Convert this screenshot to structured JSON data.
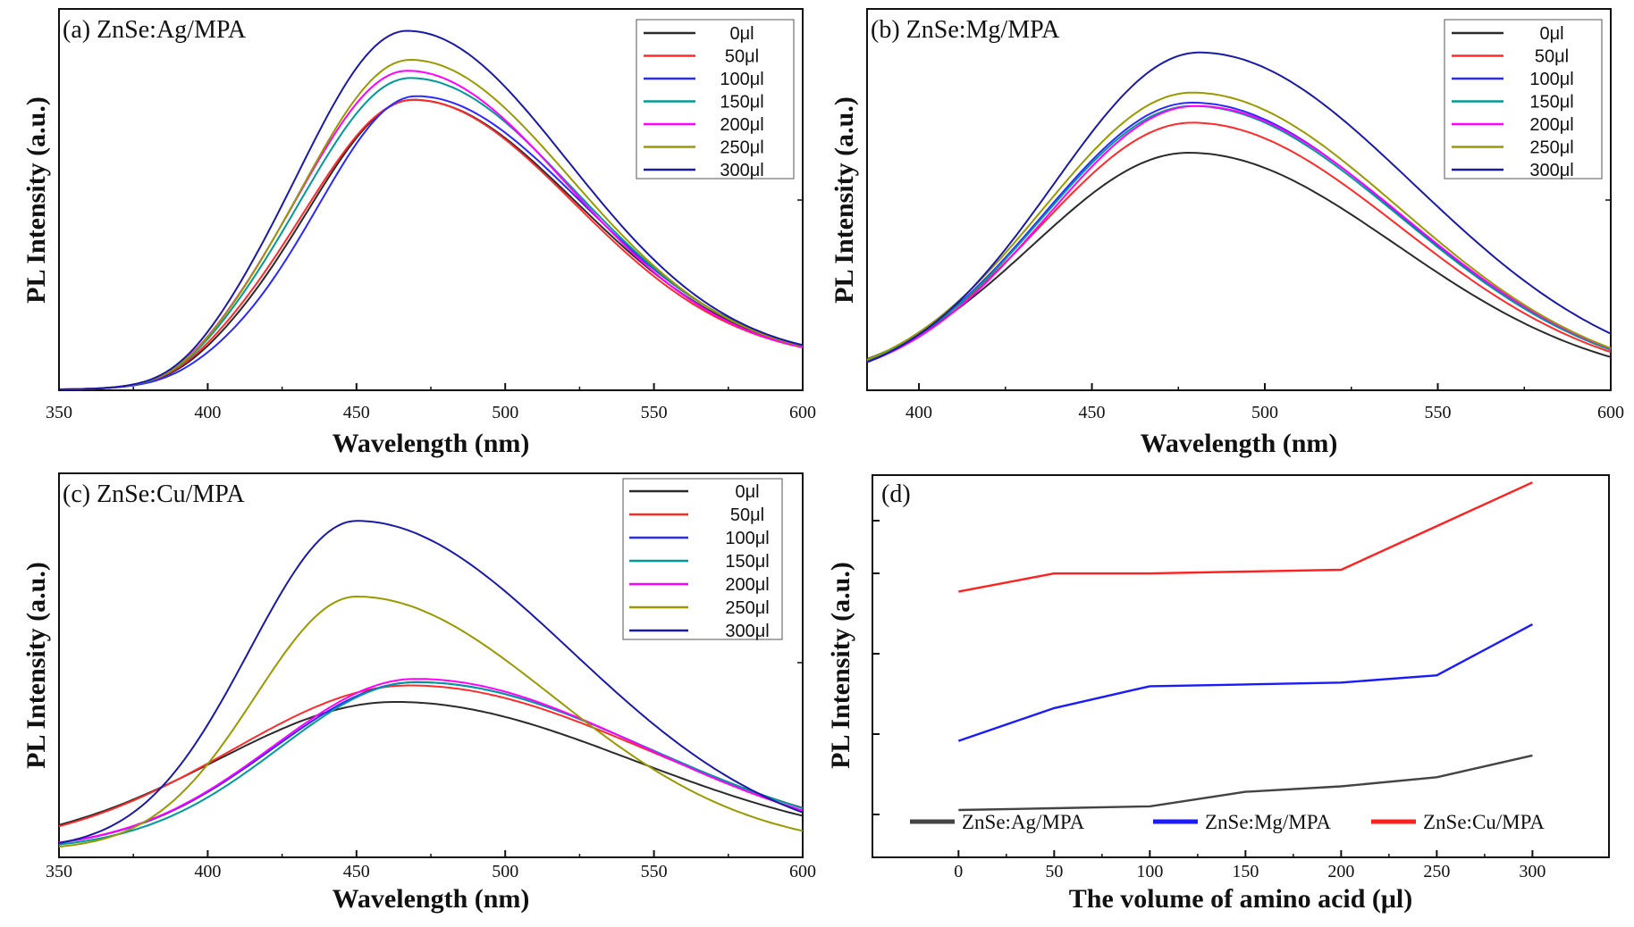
{
  "chart_data": [
    {
      "type": "line",
      "panel": "a",
      "title": "(a) ZnSe:Ag/MPA",
      "xlabel": "Wavelength (nm)",
      "ylabel": "PL Intensity (a.u.)",
      "xlim": [
        350,
        600
      ],
      "ylim": [
        0,
        1.05
      ],
      "xticks": [
        "350",
        "400",
        "450",
        "500",
        "550",
        "600"
      ],
      "legend_position": "top-right",
      "series": [
        {
          "name": "0μl",
          "color": "#2b2b2b",
          "peak": 0.8,
          "center": 469,
          "sigma_left": 34,
          "sigma_right": 55,
          "baseline": 0.08
        },
        {
          "name": "50μl",
          "color": "#ff2a2a",
          "peak": 0.8,
          "center": 469,
          "sigma_left": 35,
          "sigma_right": 54,
          "baseline": 0.08
        },
        {
          "name": "100μl",
          "color": "#2a2aff",
          "peak": 0.81,
          "center": 470,
          "sigma_left": 32,
          "sigma_right": 55,
          "baseline": 0.08
        },
        {
          "name": "150μl",
          "color": "#009999",
          "peak": 0.86,
          "center": 468,
          "sigma_left": 35,
          "sigma_right": 55,
          "baseline": 0.08
        },
        {
          "name": "200μl",
          "color": "#ff00ff",
          "peak": 0.88,
          "center": 467,
          "sigma_left": 35,
          "sigma_right": 54,
          "baseline": 0.08
        },
        {
          "name": "250μl",
          "color": "#999900",
          "peak": 0.91,
          "center": 468,
          "sigma_left": 35,
          "sigma_right": 54,
          "baseline": 0.08
        },
        {
          "name": "300μl",
          "color": "#1a1aa6",
          "peak": 0.99,
          "center": 467,
          "sigma_left": 35,
          "sigma_right": 54,
          "baseline": 0.08
        }
      ]
    },
    {
      "type": "line",
      "panel": "b",
      "title": "(b) ZnSe:Mg/MPA",
      "xlabel": "Wavelength (nm)",
      "ylabel": "PL Intensity (a.u.)",
      "xlim": [
        385,
        600
      ],
      "ylim": [
        0,
        1.05
      ],
      "xticks": [
        "400",
        "450",
        "500",
        "550",
        "600"
      ],
      "legend_position": "top-right",
      "series": [
        {
          "name": "0μl",
          "color": "#2b2b2b",
          "peak": 0.7,
          "center": 478,
          "sigma_left": 45,
          "sigma_right": 60,
          "baseline": 0.0
        },
        {
          "name": "50μl",
          "color": "#ff2a2a",
          "peak": 0.79,
          "center": 479,
          "sigma_left": 44,
          "sigma_right": 60,
          "baseline": 0.0
        },
        {
          "name": "100μl",
          "color": "#2a2aff",
          "peak": 0.85,
          "center": 479,
          "sigma_left": 43,
          "sigma_right": 60,
          "baseline": 0.0
        },
        {
          "name": "150μl",
          "color": "#009999",
          "peak": 0.84,
          "center": 479,
          "sigma_left": 43,
          "sigma_right": 60,
          "baseline": 0.0
        },
        {
          "name": "200μl",
          "color": "#ff00ff",
          "peak": 0.84,
          "center": 480,
          "sigma_left": 43,
          "sigma_right": 60,
          "baseline": 0.0
        },
        {
          "name": "250μl",
          "color": "#999900",
          "peak": 0.88,
          "center": 479,
          "sigma_left": 43,
          "sigma_right": 60,
          "baseline": 0.0
        },
        {
          "name": "300μl",
          "color": "#1a1aa6",
          "peak": 1.0,
          "center": 481,
          "sigma_left": 42,
          "sigma_right": 62,
          "baseline": 0.0
        }
      ]
    },
    {
      "type": "line",
      "panel": "c",
      "title": "(c) ZnSe:Cu/MPA",
      "xlabel": "Wavelength (nm)",
      "ylabel": "PL Intensity (a.u.)",
      "xlim": [
        350,
        600
      ],
      "ylim": [
        0,
        1.05
      ],
      "xticks": [
        "350",
        "400",
        "450",
        "500",
        "550",
        "600"
      ],
      "legend_position": "top-right",
      "series": [
        {
          "name": "0μl",
          "color": "#2b2b2b",
          "peak": 0.45,
          "center": 463,
          "sigma_left": 60,
          "sigma_right": 80,
          "baseline": 0.0
        },
        {
          "name": "50μl",
          "color": "#ff2a2a",
          "peak": 0.5,
          "center": 468,
          "sigma_left": 60,
          "sigma_right": 80,
          "baseline": 0.0
        },
        {
          "name": "100μl",
          "color": "#2a2aff",
          "peak": 0.51,
          "center": 470,
          "sigma_left": 48,
          "sigma_right": 78,
          "baseline": 0.0
        },
        {
          "name": "150μl",
          "color": "#009999",
          "peak": 0.51,
          "center": 470,
          "sigma_left": 46,
          "sigma_right": 78,
          "baseline": 0.0
        },
        {
          "name": "200μl",
          "color": "#ff00ff",
          "peak": 0.52,
          "center": 470,
          "sigma_left": 48,
          "sigma_right": 76,
          "baseline": 0.0
        },
        {
          "name": "250μl",
          "color": "#999900",
          "peak": 0.77,
          "center": 450,
          "sigma_left": 34,
          "sigma_right": 66,
          "baseline": 0.0
        },
        {
          "name": "300μl",
          "color": "#1a1aa6",
          "peak": 1.0,
          "center": 450,
          "sigma_left": 36,
          "sigma_right": 72,
          "baseline": 0.0
        }
      ]
    },
    {
      "type": "line",
      "panel": "d",
      "title": "(d)",
      "xlabel": "The volume of amino acid (μl)",
      "ylabel": "PL Intensity (a.u.)",
      "xlim": [
        -45,
        340
      ],
      "ylim": [
        0,
        1.05
      ],
      "xticks": [
        "0",
        "50",
        "100",
        "150",
        "200",
        "250",
        "300"
      ],
      "x": [
        0,
        50,
        100,
        150,
        200,
        250,
        300
      ],
      "legend_position": "bottom",
      "series": [
        {
          "name": "ZnSe:Ag/MPA",
          "color": "#444444",
          "values": [
            0.13,
            0.135,
            0.14,
            0.18,
            0.195,
            0.22,
            0.28
          ]
        },
        {
          "name": "ZnSe:Mg/MPA",
          "color": "#1a1aff",
          "values": [
            0.32,
            0.41,
            0.47,
            0.475,
            0.48,
            0.5,
            0.64
          ]
        },
        {
          "name": "ZnSe:Cu/MPA",
          "color": "#ff2020",
          "values": [
            0.73,
            0.78,
            0.78,
            0.785,
            0.79,
            0.91,
            1.03
          ]
        }
      ]
    }
  ]
}
